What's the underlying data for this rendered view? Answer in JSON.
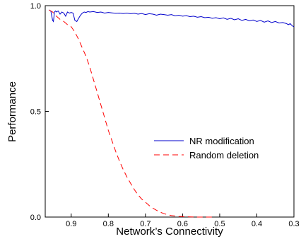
{
  "chart_data": {
    "type": "line",
    "title": "",
    "xlabel": "Network’s Connectivity",
    "ylabel": "Performance",
    "xlim": [
      0.97,
      0.3
    ],
    "ylim": [
      0.0,
      1.0
    ],
    "x_reversed": true,
    "grid": false,
    "legend_position": "center-right",
    "x_ticks": [
      {
        "value": 0.9,
        "label": "0.9"
      },
      {
        "value": 0.8,
        "label": "0.8"
      },
      {
        "value": 0.7,
        "label": "0.7"
      },
      {
        "value": 0.6,
        "label": "0.6"
      },
      {
        "value": 0.5,
        "label": "0.5"
      },
      {
        "value": 0.4,
        "label": "0.4"
      },
      {
        "value": 0.3,
        "label": "0.3"
      }
    ],
    "y_ticks": [
      {
        "value": 0.0,
        "label": "0.0"
      },
      {
        "value": 0.5,
        "label": "0.5"
      },
      {
        "value": 1.0,
        "label": "1.0"
      }
    ],
    "series": [
      {
        "name": "NR modification",
        "color": "#0000cc",
        "style": "solid",
        "x": [
          0.96,
          0.955,
          0.95,
          0.948,
          0.945,
          0.942,
          0.94,
          0.935,
          0.93,
          0.925,
          0.92,
          0.915,
          0.91,
          0.905,
          0.9,
          0.895,
          0.89,
          0.885,
          0.88,
          0.875,
          0.87,
          0.865,
          0.86,
          0.855,
          0.85,
          0.84,
          0.83,
          0.82,
          0.81,
          0.8,
          0.79,
          0.78,
          0.77,
          0.76,
          0.75,
          0.74,
          0.73,
          0.72,
          0.71,
          0.7,
          0.69,
          0.68,
          0.67,
          0.66,
          0.65,
          0.64,
          0.63,
          0.62,
          0.61,
          0.6,
          0.59,
          0.58,
          0.57,
          0.56,
          0.55,
          0.54,
          0.53,
          0.52,
          0.51,
          0.5,
          0.49,
          0.48,
          0.47,
          0.46,
          0.45,
          0.44,
          0.43,
          0.42,
          0.41,
          0.4,
          0.39,
          0.38,
          0.37,
          0.36,
          0.35,
          0.34,
          0.33,
          0.32,
          0.315,
          0.31,
          0.305,
          0.3
        ],
        "y": [
          0.98,
          0.975,
          0.93,
          0.925,
          0.97,
          0.975,
          0.97,
          0.975,
          0.96,
          0.97,
          0.965,
          0.95,
          0.97,
          0.965,
          0.968,
          0.965,
          0.93,
          0.925,
          0.94,
          0.955,
          0.965,
          0.97,
          0.968,
          0.972,
          0.97,
          0.972,
          0.968,
          0.97,
          0.965,
          0.968,
          0.966,
          0.964,
          0.965,
          0.963,
          0.965,
          0.962,
          0.964,
          0.96,
          0.963,
          0.958,
          0.962,
          0.96,
          0.955,
          0.96,
          0.958,
          0.955,
          0.958,
          0.952,
          0.955,
          0.95,
          0.953,
          0.948,
          0.95,
          0.945,
          0.948,
          0.943,
          0.945,
          0.94,
          0.943,
          0.938,
          0.942,
          0.935,
          0.94,
          0.933,
          0.938,
          0.93,
          0.935,
          0.928,
          0.932,
          0.925,
          0.93,
          0.922,
          0.928,
          0.92,
          0.925,
          0.918,
          0.92,
          0.915,
          0.91,
          0.915,
          0.905,
          0.9
        ]
      },
      {
        "name": "Random deletion",
        "color": "#ff0000",
        "style": "dashed",
        "x": [
          0.96,
          0.95,
          0.94,
          0.93,
          0.92,
          0.91,
          0.9,
          0.89,
          0.88,
          0.87,
          0.86,
          0.85,
          0.84,
          0.83,
          0.82,
          0.81,
          0.8,
          0.79,
          0.78,
          0.77,
          0.76,
          0.75,
          0.74,
          0.73,
          0.72,
          0.71,
          0.7,
          0.69,
          0.68,
          0.67,
          0.66,
          0.65,
          0.64,
          0.63,
          0.62,
          0.61,
          0.6,
          0.58,
          0.56,
          0.54,
          0.52
        ],
        "y": [
          0.98,
          0.97,
          0.95,
          0.935,
          0.925,
          0.91,
          0.9,
          0.875,
          0.84,
          0.8,
          0.76,
          0.71,
          0.65,
          0.59,
          0.53,
          0.47,
          0.41,
          0.36,
          0.31,
          0.265,
          0.225,
          0.19,
          0.16,
          0.13,
          0.105,
          0.085,
          0.07,
          0.055,
          0.042,
          0.032,
          0.023,
          0.016,
          0.011,
          0.007,
          0.005,
          0.003,
          0.002,
          0.001,
          0.0,
          0.0,
          0.0
        ]
      }
    ]
  }
}
